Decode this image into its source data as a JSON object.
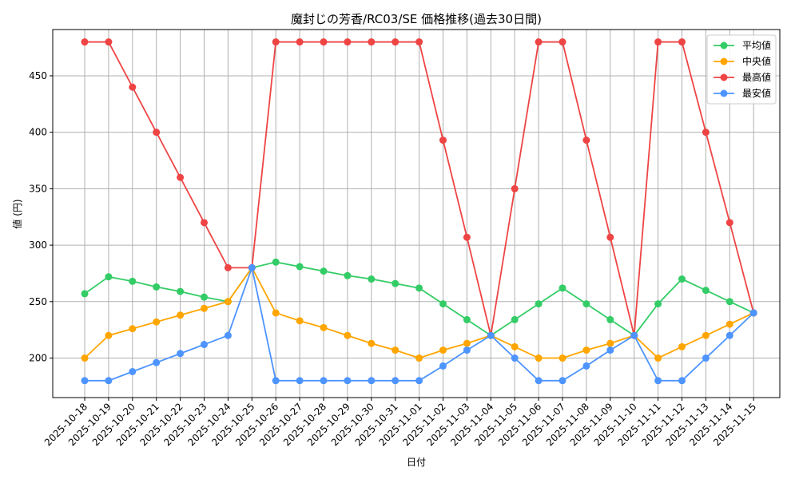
{
  "chart_data": {
    "type": "line",
    "title": "魔封じの芳香/RC03/SE 価格推移(過去30日間)",
    "xlabel": "日付",
    "ylabel": "値 (円)",
    "ylim": [
      165,
      491
    ],
    "yticks": [
      200,
      250,
      300,
      350,
      400,
      450
    ],
    "grid": true,
    "legend_position": "top-right",
    "categories": [
      "2025-10-18",
      "2025-10-19",
      "2025-10-20",
      "2025-10-21",
      "2025-10-22",
      "2025-10-23",
      "2025-10-24",
      "2025-10-25",
      "2025-10-26",
      "2025-10-27",
      "2025-10-28",
      "2025-10-29",
      "2025-10-30",
      "2025-10-31",
      "2025-11-01",
      "2025-11-02",
      "2025-11-03",
      "2025-11-04",
      "2025-11-05",
      "2025-11-06",
      "2025-11-07",
      "2025-11-08",
      "2025-11-09",
      "2025-11-10",
      "2025-11-11",
      "2025-11-12",
      "2025-11-13",
      "2025-11-14",
      "2025-11-15"
    ],
    "series": [
      {
        "name": "平均値",
        "color": "#33cc66",
        "values": [
          257,
          272,
          268,
          263,
          259,
          254,
          250,
          280,
          285,
          281,
          277,
          273,
          270,
          266,
          262,
          248,
          234,
          220,
          234,
          248,
          262,
          248,
          234,
          220,
          248,
          270,
          260,
          250,
          240
        ]
      },
      {
        "name": "中央値",
        "color": "#ffa500",
        "values": [
          200,
          220,
          226,
          232,
          238,
          244,
          250,
          280,
          240,
          233,
          227,
          220,
          213,
          207,
          200,
          207,
          213,
          220,
          210,
          200,
          200,
          207,
          213,
          220,
          200,
          210,
          220,
          230,
          240
        ]
      },
      {
        "name": "最高値",
        "color": "#ee4444",
        "values": [
          480,
          480,
          440,
          400,
          360,
          320,
          280,
          280,
          480,
          480,
          480,
          480,
          480,
          480,
          480,
          393,
          307,
          220,
          350,
          480,
          480,
          393,
          307,
          220,
          480,
          480,
          400,
          320,
          240
        ]
      },
      {
        "name": "最安値",
        "color": "#4d94ff",
        "values": [
          180,
          180,
          188,
          196,
          204,
          212,
          220,
          280,
          180,
          180,
          180,
          180,
          180,
          180,
          180,
          193,
          207,
          220,
          200,
          180,
          180,
          193,
          207,
          220,
          180,
          180,
          200,
          220,
          240
        ]
      }
    ]
  }
}
